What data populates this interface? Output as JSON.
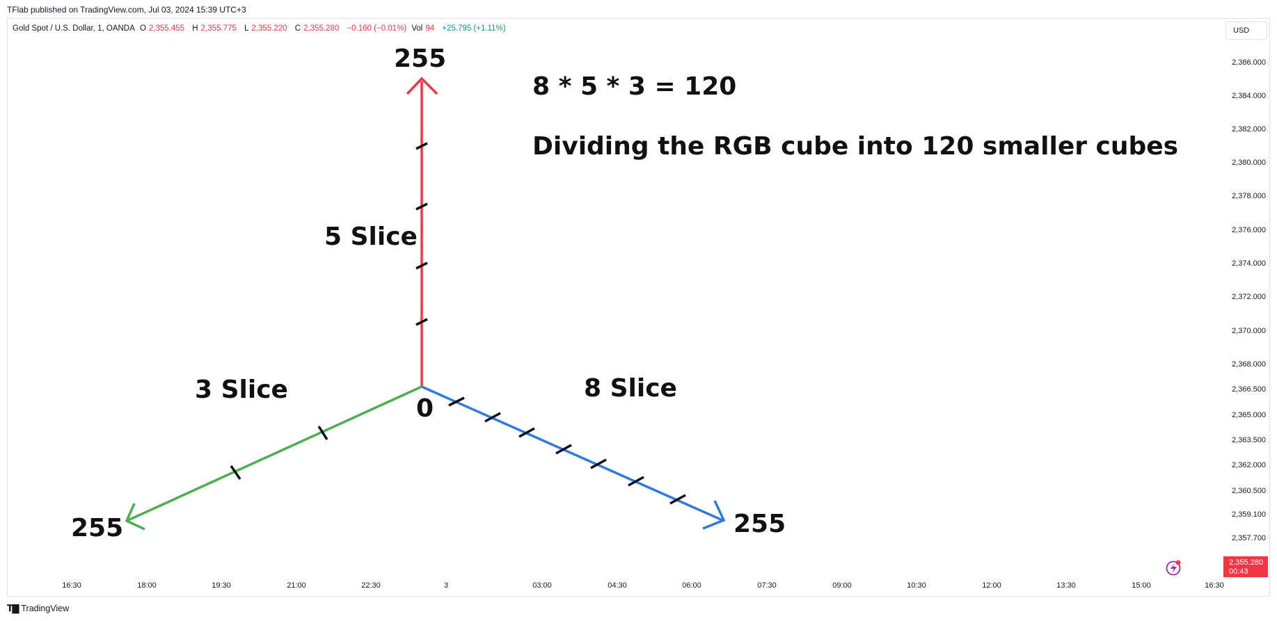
{
  "header": {
    "published": "TFlab published on TradingView.com, Jul 03, 2024 15:39 UTC+3"
  },
  "legend": {
    "symbol": "Gold Spot / U.S. Dollar, 1, OANDA",
    "open_label": "O",
    "open": "2,355.455",
    "high_label": "H",
    "high": "2,355.775",
    "low_label": "L",
    "low": "2,355.220",
    "close_label": "C",
    "close": "2,355.280",
    "change": "−0.160 (−0.01%)",
    "vol_label": "Vol",
    "vol": "94",
    "vol_change": "+25.795 (+1.11%)"
  },
  "currency": "USD",
  "price_axis": [
    "2,386.000",
    "2,384.000",
    "2,382.000",
    "2,380.000",
    "2,378.000",
    "2,376.000",
    "2,374.000",
    "2,372.000",
    "2,370.000",
    "2,368.000",
    "2,366.500",
    "2,365.000",
    "2,363.500",
    "2,362.000",
    "2,360.500",
    "2,359.100",
    "2,357.700"
  ],
  "price_badge": {
    "price": "2,355.280",
    "countdown": "00:43"
  },
  "time_axis": [
    "16:30",
    "18:00",
    "19:30",
    "21:00",
    "22:30",
    "3",
    "03:00",
    "04:30",
    "06:00",
    "07:30",
    "09:00",
    "10:30",
    "12:00",
    "13:30",
    "15:00",
    "16:30"
  ],
  "drawing": {
    "equation": "8 * 5 * 3 = 120",
    "description": "Dividing the RGB cube into 120 smaller cubes",
    "red_axis_max": "255",
    "green_axis_max": "255",
    "blue_axis_max": "255",
    "origin": "0",
    "red_slices": "5 Slice",
    "green_slices": "3 Slice",
    "blue_slices": "8 Slice",
    "colors": {
      "red": "#f23645",
      "green": "#4caf50",
      "blue": "#2f7ae5",
      "tick": "#111111"
    }
  },
  "footer": {
    "brand": "TradingView"
  }
}
